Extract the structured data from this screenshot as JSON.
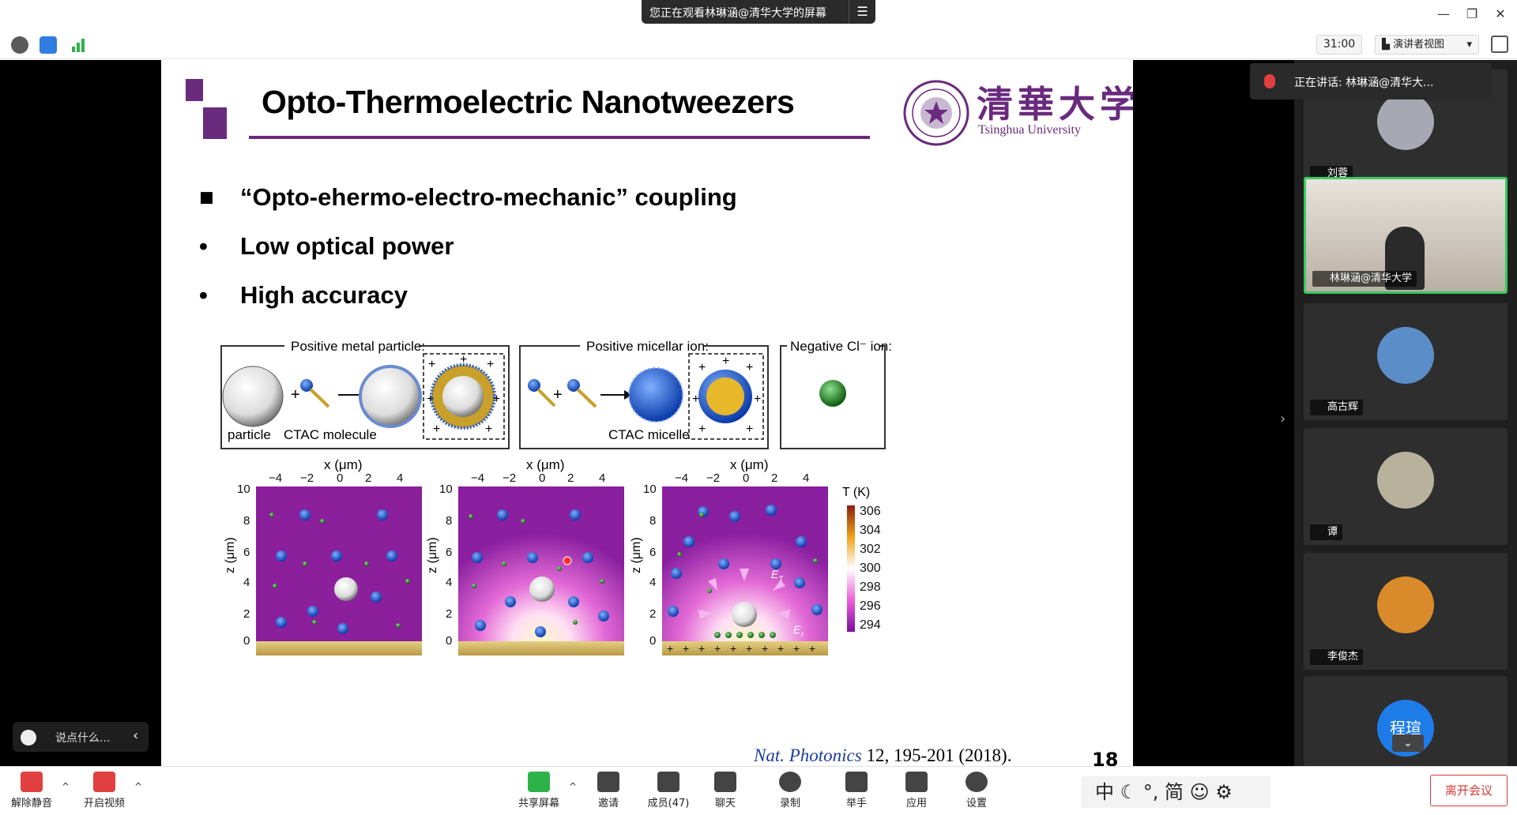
{
  "window": {
    "share_banner": "您正在观看林琳涵@清华大学的屏幕",
    "controls": {
      "minimize": "—",
      "restore": "❐",
      "close": "✕"
    }
  },
  "topbar": {
    "timer": "31:00",
    "view_mode": "演讲者视图",
    "view_caret": "▾"
  },
  "slide": {
    "title": "Opto-Thermoelectric Nanotweezers",
    "logo_cn": "清華大学",
    "logo_en": "Tsinghua University",
    "bullets": [
      {
        "marker": "■",
        "text": "“Opto-ehermo-electro-mechanic” coupling"
      },
      {
        "marker": "•",
        "text": "Low optical power"
      },
      {
        "marker": "•",
        "text": "High accuracy"
      }
    ],
    "figure": {
      "box1_title": "Positive metal particle:",
      "box1_label_a": "particle",
      "box1_label_b": "CTAC molecule",
      "box2_title": "Positive micellar ion:",
      "box2_label": "CTAC micelle",
      "box3_title": "Negative Cl⁻ ion:",
      "x_axis_label": "x (μm)",
      "z_axis_label": "z (μm)",
      "x_ticks": [
        "−4",
        "−2",
        "0",
        "2",
        "4"
      ],
      "z_ticks": [
        "10",
        "8",
        "6",
        "4",
        "2",
        "0"
      ],
      "colorbar_title": "T (K)",
      "colorbar_ticks": [
        "306",
        "304",
        "302",
        "300",
        "298",
        "296",
        "294"
      ],
      "field_label_t": "E",
      "field_sub_t": "T",
      "field_label_r": "E",
      "field_sub_r": "r"
    },
    "citation_journal": "Nat. Photonics",
    "citation_ref": " 12, 195-201 (2018).",
    "page_number": "18"
  },
  "chat": {
    "placeholder": "说点什么...",
    "collapse": "‹"
  },
  "panel": {
    "speaking": "正在讲话: 林琳涵@清华大...",
    "participants": [
      {
        "name": "刘蓉"
      },
      {
        "name": "林琳涵@清华大学"
      },
      {
        "name": "高古辉"
      },
      {
        "name": "谭"
      },
      {
        "name": "李俊杰"
      },
      {
        "name": "程瑄"
      }
    ],
    "side_arrow": "›",
    "scroll_down": "⌄"
  },
  "bottombar": {
    "unmute": "解除静音",
    "start_video": "开启视频",
    "share_screen": "共享屏幕",
    "invite": "邀请",
    "members": "成员(47)",
    "chat": "聊天",
    "record": "录制",
    "raise_hand": "举手",
    "apps": "应用",
    "settings": "设置",
    "ime": "中 ☾ °, 简 ☺ ⚙",
    "leave": "离开会议"
  },
  "colors": {
    "brand_purple": "#6a2a7d",
    "active_tile": "#38c95e",
    "leave_red": "#d93a3a"
  }
}
